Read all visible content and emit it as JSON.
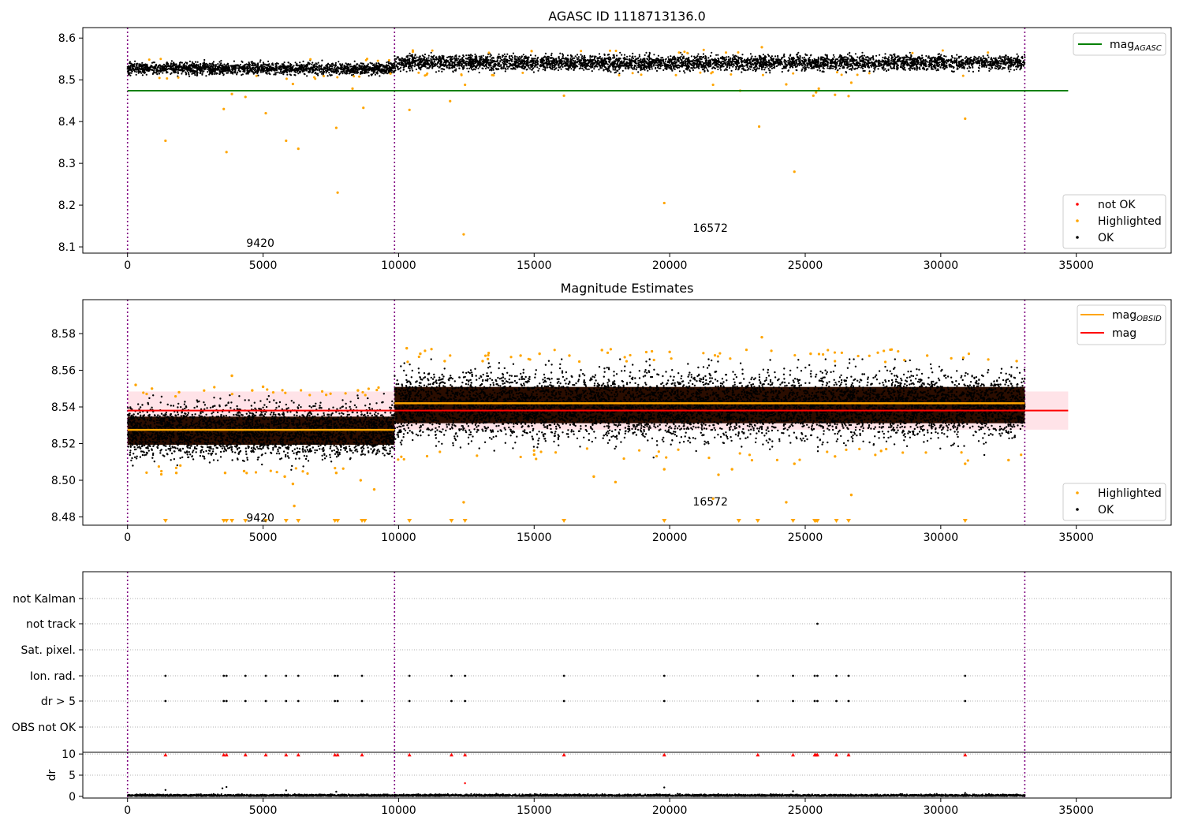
{
  "figure": {
    "colors": {
      "ok": "#000000",
      "highlighted": "#ffa500",
      "not_ok": "#ff0000",
      "agasc_line": "#008000",
      "mag_line": "#ff0000",
      "obsid_line": "#ffa500",
      "band": "#ffc0cb",
      "obsid_sep": "#800080"
    }
  },
  "chart_data": [
    {
      "type": "scatter",
      "title": "AGASC ID 1118713136.0",
      "xlabel": "",
      "ylabel": "",
      "xlim": [
        -1650,
        38500
      ],
      "ylim": [
        8.085,
        8.625
      ],
      "xticks": [
        0,
        5000,
        10000,
        15000,
        20000,
        25000,
        30000,
        35000
      ],
      "xtick_labels": [
        "0",
        "5000",
        "10000",
        "15000",
        "20000",
        "25000",
        "30000",
        "35000"
      ],
      "yticks": [
        8.1,
        8.2,
        8.3,
        8.4,
        8.5,
        8.6
      ],
      "ytick_labels": [
        "8.1",
        "8.2",
        "8.3",
        "8.4",
        "8.5",
        "8.6"
      ],
      "obsid_boundaries": [
        0,
        9850,
        33100
      ],
      "obsid_labels": [
        {
          "text": "9420",
          "x": 4900,
          "y": 8.11
        },
        {
          "text": "16572",
          "x": 21500,
          "y": 8.145
        }
      ],
      "ok_band": [
        {
          "x0": 0,
          "x1": 9850,
          "mean": 8.527,
          "sigma": 0.007
        },
        {
          "x0": 9850,
          "x1": 33100,
          "mean": 8.541,
          "sigma": 0.009
        }
      ],
      "hlines": [
        {
          "name": "mag_AGASC",
          "value": 8.474,
          "x0": 0,
          "x1": 34700
        }
      ],
      "highlighted": [
        [
          1400,
          8.354
        ],
        [
          3550,
          8.43
        ],
        [
          3650,
          8.327
        ],
        [
          3850,
          8.466
        ],
        [
          4350,
          8.459
        ],
        [
          5100,
          8.42
        ],
        [
          5850,
          8.354
        ],
        [
          6300,
          8.335
        ],
        [
          6100,
          8.49
        ],
        [
          7700,
          8.385
        ],
        [
          7750,
          8.23
        ],
        [
          8300,
          8.479
        ],
        [
          8700,
          8.433
        ],
        [
          9700,
          8.515
        ],
        [
          10400,
          8.428
        ],
        [
          11900,
          8.449
        ],
        [
          12400,
          8.13
        ],
        [
          12450,
          8.488
        ],
        [
          16100,
          8.462
        ],
        [
          19800,
          8.205
        ],
        [
          21600,
          8.488
        ],
        [
          22600,
          8.474
        ],
        [
          23300,
          8.388
        ],
        [
          24300,
          8.489
        ],
        [
          24600,
          8.28
        ],
        [
          25300,
          8.462
        ],
        [
          25500,
          8.479
        ],
        [
          25400,
          8.47
        ],
        [
          26100,
          8.464
        ],
        [
          26600,
          8.461
        ],
        [
          26700,
          8.493
        ],
        [
          30900,
          8.407
        ],
        [
          23400,
          8.578
        ]
      ],
      "legend": {
        "lines": [
          {
            "label": "mag",
            "sub": "AGASC",
            "color": "#008000"
          }
        ],
        "markers": [
          {
            "label": "not OK",
            "color": "#ff0000"
          },
          {
            "label": "Highlighted",
            "color": "#ffa500"
          },
          {
            "label": "OK",
            "color": "#000000"
          }
        ]
      }
    },
    {
      "type": "scatter",
      "title": "Magnitude Estimates",
      "xlabel": "",
      "ylabel": "",
      "xlim": [
        -1650,
        38500
      ],
      "ylim": [
        8.4755,
        8.5985
      ],
      "xticks": [
        0,
        5000,
        10000,
        15000,
        20000,
        25000,
        30000,
        35000
      ],
      "xtick_labels": [
        "0",
        "5000",
        "10000",
        "15000",
        "20000",
        "25000",
        "30000",
        "35000"
      ],
      "yticks": [
        8.48,
        8.5,
        8.52,
        8.54,
        8.56,
        8.58
      ],
      "ytick_labels": [
        "8.48",
        "8.50",
        "8.52",
        "8.54",
        "8.56",
        "8.58"
      ],
      "obsid_boundaries": [
        0,
        9850,
        33100
      ],
      "obsid_labels": [
        {
          "text": "9420",
          "x": 4900,
          "y": 8.4795
        },
        {
          "text": "16572",
          "x": 21500,
          "y": 8.4885
        }
      ],
      "mag": {
        "value": 8.538,
        "x0": 0,
        "x1": 34700,
        "band": [
          8.5276,
          8.5484
        ]
      },
      "mag_obsid": [
        {
          "x0": 0,
          "x1": 9850,
          "value": 8.5275
        },
        {
          "x0": 9850,
          "x1": 33100,
          "value": 8.542
        }
      ],
      "ok_band": [
        {
          "x0": 0,
          "x1": 9850,
          "mean": 8.527,
          "sigma": 0.007
        },
        {
          "x0": 9850,
          "x1": 33100,
          "mean": 8.541,
          "sigma": 0.009
        }
      ],
      "highlighted": [
        [
          300,
          8.552
        ],
        [
          900,
          8.55
        ],
        [
          1900,
          8.548
        ],
        [
          1800,
          8.504
        ],
        [
          3600,
          8.504
        ],
        [
          3850,
          8.557
        ],
        [
          4300,
          8.505
        ],
        [
          4600,
          8.549
        ],
        [
          5000,
          8.551
        ],
        [
          5800,
          8.502
        ],
        [
          6100,
          8.498
        ],
        [
          6150,
          8.486
        ],
        [
          7700,
          8.504
        ],
        [
          8500,
          8.549
        ],
        [
          8600,
          8.5
        ],
        [
          9100,
          8.495
        ],
        [
          10300,
          8.572
        ],
        [
          10800,
          8.569
        ],
        [
          11700,
          8.565
        ],
        [
          12400,
          8.488
        ],
        [
          13100,
          8.565
        ],
        [
          14500,
          8.568
        ],
        [
          15000,
          8.514
        ],
        [
          15200,
          8.569
        ],
        [
          16300,
          8.568
        ],
        [
          17200,
          8.502
        ],
        [
          17500,
          8.571
        ],
        [
          18000,
          8.499
        ],
        [
          19800,
          8.506
        ],
        [
          20000,
          8.57
        ],
        [
          21600,
          8.49
        ],
        [
          21800,
          8.503
        ],
        [
          22300,
          8.506
        ],
        [
          23400,
          8.578
        ],
        [
          24300,
          8.488
        ],
        [
          24600,
          8.509
        ],
        [
          25200,
          8.569
        ],
        [
          26100,
          8.513
        ],
        [
          26700,
          8.492
        ],
        [
          27800,
          8.516
        ],
        [
          29500,
          8.568
        ],
        [
          30900,
          8.509
        ],
        [
          32500,
          8.511
        ],
        [
          32800,
          8.565
        ]
      ],
      "below_range_x": [
        1400,
        3550,
        3650,
        3850,
        4350,
        5100,
        5850,
        6300,
        7650,
        7750,
        8650,
        8750,
        10400,
        11950,
        12450,
        16100,
        19800,
        22550,
        23250,
        24550,
        25350,
        25400,
        25450,
        26150,
        26600,
        30900
      ],
      "legend": {
        "lines": [
          {
            "label": "mag",
            "sub": "OBSID",
            "color": "#ffa500"
          },
          {
            "label": "mag",
            "sub": "",
            "color": "#ff0000"
          }
        ],
        "markers": [
          {
            "label": "Highlighted",
            "color": "#ffa500"
          },
          {
            "label": "OK",
            "color": "#000000"
          }
        ]
      }
    },
    {
      "type": "scatter",
      "title": "",
      "xlabel": "",
      "ylabel": "",
      "xlim": [
        -1650,
        38500
      ],
      "categories": [
        "not Kalman",
        "not track",
        "Sat. pixel.",
        "Ion. rad.",
        "dr > 5",
        "OBS not OK"
      ],
      "flag_points": {
        "not track": [
          25450
        ],
        "Sat. pixel.": [],
        "Ion. rad.": [
          1400,
          3550,
          3650,
          4350,
          5100,
          5850,
          6300,
          7650,
          7750,
          8650,
          10400,
          11950,
          12450,
          16100,
          19800,
          23250,
          24550,
          25350,
          25450,
          26150,
          26600,
          30900
        ],
        "dr > 5": [
          1400,
          3550,
          3650,
          4350,
          5100,
          5850,
          6300,
          7650,
          7750,
          8650,
          10400,
          11950,
          12450,
          16100,
          19800,
          23250,
          24550,
          25350,
          25450,
          26150,
          26600,
          30900
        ],
        "OBS not OK": [],
        "not Kalman": []
      },
      "obsid_boundaries": [
        0,
        9850,
        33100
      ]
    },
    {
      "type": "scatter",
      "title": "",
      "xlabel": "",
      "ylabel": "dr",
      "xlim": [
        -1650,
        38500
      ],
      "ylim": [
        -0.4,
        10.4
      ],
      "xticks": [
        0,
        5000,
        10000,
        15000,
        20000,
        25000,
        30000,
        35000
      ],
      "xtick_labels": [
        "0",
        "5000",
        "10000",
        "15000",
        "20000",
        "25000",
        "30000",
        "35000"
      ],
      "yticks": [
        0,
        5,
        10
      ],
      "ytick_labels": [
        "0",
        "5",
        "10"
      ],
      "clipped_x": [
        1400,
        3550,
        3650,
        4350,
        5100,
        5850,
        6300,
        7650,
        7750,
        8650,
        10400,
        11950,
        12450,
        16100,
        19800,
        23250,
        24550,
        25350,
        25400,
        25450,
        26150,
        26600,
        30900
      ],
      "outliers": [
        [
          1400,
          1.5
        ],
        [
          3500,
          1.9
        ],
        [
          3650,
          2.2
        ],
        [
          5850,
          1.4
        ],
        [
          7700,
          1.1
        ],
        [
          12450,
          3.1
        ],
        [
          19800,
          2.1
        ],
        [
          24550,
          1.2
        ],
        [
          30900,
          0.8
        ]
      ],
      "obsid_boundaries": [
        0,
        9850,
        33100
      ]
    }
  ]
}
